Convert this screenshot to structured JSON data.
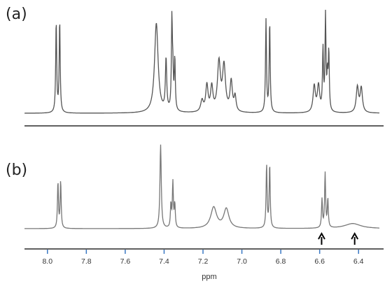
{
  "chart_data": [
    {
      "type": "line",
      "panel_label": "(a)",
      "xlabel": "ppm",
      "xlim": [
        8.1,
        6.3
      ],
      "x_reversed": true,
      "y_ticks_shown": false,
      "peak_shape": "lorentzian",
      "series": [
        {
          "line_color": "#555555",
          "peaks": [
            {
              "x": 7.955,
              "height": 0.97,
              "width": 0.003
            },
            {
              "x": 7.937,
              "height": 0.98,
              "width": 0.003
            },
            {
              "x": 7.44,
              "height": 0.95,
              "width": 0.011
            },
            {
              "x": 7.39,
              "height": 0.55,
              "width": 0.004
            },
            {
              "x": 7.36,
              "height": 0.95,
              "width": 0.003
            },
            {
              "x": 7.355,
              "height": 0.35,
              "width": 0.003
            },
            {
              "x": 7.345,
              "height": 0.55,
              "width": 0.003
            },
            {
              "x": 7.205,
              "height": 0.12,
              "width": 0.008
            },
            {
              "x": 7.18,
              "height": 0.28,
              "width": 0.007
            },
            {
              "x": 7.155,
              "height": 0.26,
              "width": 0.007
            },
            {
              "x": 7.118,
              "height": 0.52,
              "width": 0.009
            },
            {
              "x": 7.092,
              "height": 0.48,
              "width": 0.009
            },
            {
              "x": 7.055,
              "height": 0.32,
              "width": 0.007
            },
            {
              "x": 7.035,
              "height": 0.16,
              "width": 0.006
            },
            {
              "x": 6.876,
              "height": 0.98,
              "width": 0.003
            },
            {
              "x": 6.857,
              "height": 0.96,
              "width": 0.003
            },
            {
              "x": 6.628,
              "height": 0.28,
              "width": 0.007
            },
            {
              "x": 6.606,
              "height": 0.28,
              "width": 0.007
            },
            {
              "x": 6.583,
              "height": 0.65,
              "width": 0.003
            },
            {
              "x": 6.57,
              "height": 1.0,
              "width": 0.003
            },
            {
              "x": 6.56,
              "height": 0.35,
              "width": 0.003
            },
            {
              "x": 6.553,
              "height": 0.62,
              "width": 0.003
            },
            {
              "x": 6.406,
              "height": 0.27,
              "width": 0.007
            },
            {
              "x": 6.386,
              "height": 0.26,
              "width": 0.007
            }
          ]
        }
      ]
    },
    {
      "type": "line",
      "panel_label": "(b)",
      "xlabel": "ppm",
      "xlim": [
        8.1,
        6.3
      ],
      "x_reversed": true,
      "y_ticks_shown": false,
      "peak_shape": "lorentzian",
      "series": [
        {
          "line_color": "#777777",
          "peaks": [
            {
              "x": 7.946,
              "height": 0.55,
              "width": 0.003
            },
            {
              "x": 7.932,
              "height": 0.56,
              "width": 0.003
            },
            {
              "x": 7.418,
              "height": 1.0,
              "width": 0.004
            },
            {
              "x": 7.365,
              "height": 0.28,
              "width": 0.003
            },
            {
              "x": 7.355,
              "height": 0.54,
              "width": 0.003
            },
            {
              "x": 7.345,
              "height": 0.28,
              "width": 0.003
            },
            {
              "x": 7.145,
              "height": 0.25,
              "width": 0.018
            },
            {
              "x": 7.08,
              "height": 0.23,
              "width": 0.016
            },
            {
              "x": 6.873,
              "height": 0.76,
              "width": 0.003
            },
            {
              "x": 6.857,
              "height": 0.76,
              "width": 0.003
            },
            {
              "x": 6.588,
              "height": 0.34,
              "width": 0.003
            },
            {
              "x": 6.572,
              "height": 0.65,
              "width": 0.003
            },
            {
              "x": 6.558,
              "height": 0.34,
              "width": 0.003
            },
            {
              "x": 6.43,
              "height": 0.06,
              "width": 0.05
            }
          ]
        }
      ],
      "annotations": [
        {
          "type": "arrow",
          "x": 6.59
        },
        {
          "type": "arrow",
          "x": 6.42
        }
      ]
    }
  ],
  "axis": {
    "ticks": [
      8.0,
      7.8,
      7.6,
      7.4,
      7.2,
      7.0,
      6.8,
      6.6,
      6.4
    ],
    "tick_labels": [
      "8.0",
      "7.8",
      "7.6",
      "7.4",
      "7.2",
      "7.0",
      "6.8",
      "6.6",
      "6.4"
    ],
    "xlabel": "ppm",
    "tick_color": "#3a78c2"
  },
  "colors": {
    "panel_separator": "#000000",
    "axis_line": "#000000",
    "arrow": "#000000"
  }
}
